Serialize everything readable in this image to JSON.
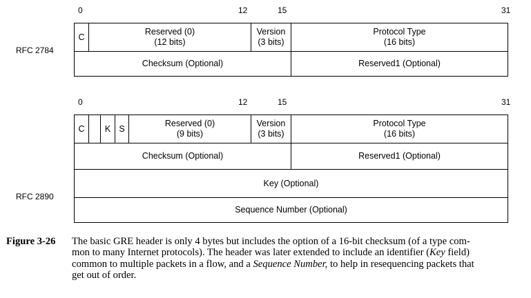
{
  "diagram1": {
    "rfc_label": "RFC 2784",
    "bits": {
      "b0": "0",
      "b12": "12",
      "b15": "15",
      "b31": "31"
    },
    "c": "C",
    "reserved_line1": "Reserved (0)",
    "reserved_line2": "(12 bits)",
    "version_line1": "Version",
    "version_line2": "(3 bits)",
    "protocol_line1": "Protocol Type",
    "protocol_line2": "(16 bits)",
    "checksum": "Checksum (Optional)",
    "reserved1": "Reserved1 (Optional)"
  },
  "diagram2": {
    "rfc_label": "RFC 2890",
    "bits": {
      "b0": "0",
      "b12": "12",
      "b15": "15",
      "b31": "31"
    },
    "c": "C",
    "k": "K",
    "s": "S",
    "reserved_line1": "Reserved (0)",
    "reserved_line2": "(9 bits)",
    "version_line1": "Version",
    "version_line2": "(3 bits)",
    "protocol_line1": "Protocol Type",
    "protocol_line2": "(16 bits)",
    "checksum": "Checksum (Optional)",
    "reserved1": "Reserved1 (Optional)",
    "key": "Key (Optional)",
    "sequence": "Sequence Number (Optional)"
  },
  "caption": {
    "label": "Figure 3-26",
    "line1": "The basic GRE header is only 4 bytes but includes the option of a 16-bit checksum (of a type com-",
    "line2": "mon to many Internet protocols). The header was later extended to include an identifier (",
    "line2_italic": "Key",
    "line2_end": " field)",
    "line3_start": "common to multiple packets in a flow, and a ",
    "line3_italic": "Sequence Number,",
    "line3_end": " to help in resequencing packets that",
    "line4": "get out of order."
  }
}
